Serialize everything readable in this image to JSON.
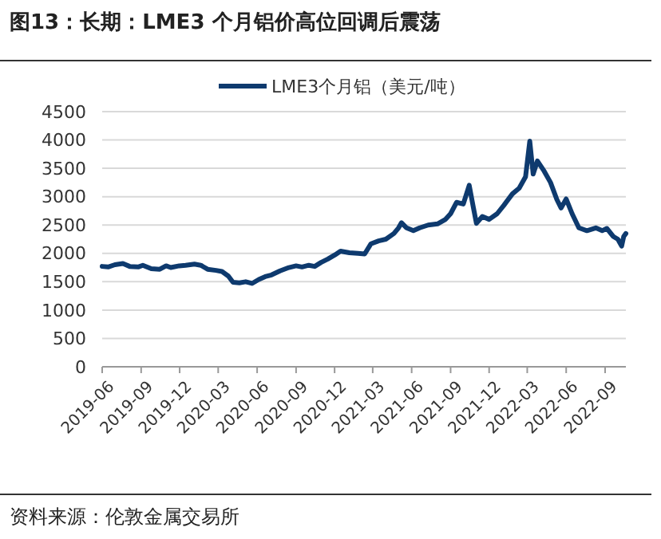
{
  "chart_data": {
    "type": "line",
    "title": "图13：长期：LME3 个月铝价高位回调后震荡",
    "annotations": [
      "资料来源：伦敦金属交易所"
    ],
    "x": [
      "2019-06-01",
      "2019-06-15",
      "2019-07-01",
      "2019-07-20",
      "2019-08-05",
      "2019-08-25",
      "2019-09-05",
      "2019-09-25",
      "2019-10-15",
      "2019-10-30",
      "2019-11-10",
      "2019-11-30",
      "2019-12-15",
      "2020-01-05",
      "2020-01-20",
      "2020-02-05",
      "2020-02-25",
      "2020-03-10",
      "2020-03-25",
      "2020-04-05",
      "2020-04-20",
      "2020-05-05",
      "2020-05-20",
      "2020-06-05",
      "2020-06-20",
      "2020-07-05",
      "2020-07-25",
      "2020-08-15",
      "2020-09-01",
      "2020-09-15",
      "2020-10-01",
      "2020-10-15",
      "2020-10-30",
      "2020-11-15",
      "2020-12-01",
      "2020-12-15",
      "2021-01-05",
      "2021-01-25",
      "2021-02-10",
      "2021-02-25",
      "2021-03-15",
      "2021-04-01",
      "2021-04-20",
      "2021-05-01",
      "2021-05-08",
      "2021-05-20",
      "2021-06-05",
      "2021-06-20",
      "2021-07-10",
      "2021-08-01",
      "2021-08-20",
      "2021-09-01",
      "2021-09-15",
      "2021-10-01",
      "2021-10-15",
      "2021-10-25",
      "2021-11-01",
      "2021-11-15",
      "2021-12-01",
      "2021-12-20",
      "2022-01-05",
      "2022-01-25",
      "2022-02-10",
      "2022-02-25",
      "2022-03-07",
      "2022-03-15",
      "2022-03-25",
      "2022-04-10",
      "2022-04-25",
      "2022-05-10",
      "2022-05-20",
      "2022-06-01",
      "2022-06-15",
      "2022-07-01",
      "2022-07-20",
      "2022-08-10",
      "2022-08-25",
      "2022-09-05",
      "2022-09-20",
      "2022-10-01",
      "2022-10-10",
      "2022-10-15",
      "2022-10-20"
    ],
    "series": [
      {
        "name": "LME3个月铝（美元/吨）",
        "color": "#0e3a6e",
        "values": [
          1770,
          1760,
          1800,
          1820,
          1770,
          1760,
          1790,
          1730,
          1720,
          1780,
          1750,
          1780,
          1790,
          1810,
          1790,
          1720,
          1700,
          1680,
          1600,
          1490,
          1480,
          1500,
          1470,
          1540,
          1590,
          1620,
          1690,
          1750,
          1780,
          1760,
          1790,
          1770,
          1840,
          1900,
          1970,
          2040,
          2010,
          2000,
          1990,
          2170,
          2220,
          2250,
          2350,
          2450,
          2540,
          2450,
          2400,
          2450,
          2500,
          2520,
          2600,
          2700,
          2900,
          2870,
          3200,
          2800,
          2530,
          2650,
          2600,
          2700,
          2850,
          3050,
          3150,
          3350,
          3980,
          3400,
          3630,
          3450,
          3250,
          2950,
          2800,
          2960,
          2700,
          2450,
          2400,
          2450,
          2400,
          2440,
          2300,
          2250,
          2130,
          2300,
          2350
        ]
      }
    ],
    "xlim": [
      "2019-06-01",
      "2022-10-20"
    ],
    "xticks": [
      {
        "value": "2019-06-01",
        "label": "2019-06"
      },
      {
        "value": "2019-09-01",
        "label": "2019-09"
      },
      {
        "value": "2019-12-01",
        "label": "2019-12"
      },
      {
        "value": "2020-03-01",
        "label": "2020-03"
      },
      {
        "value": "2020-06-01",
        "label": "2020-06"
      },
      {
        "value": "2020-09-01",
        "label": "2020-09"
      },
      {
        "value": "2020-12-01",
        "label": "2020-12"
      },
      {
        "value": "2021-03-01",
        "label": "2021-03"
      },
      {
        "value": "2021-06-01",
        "label": "2021-06"
      },
      {
        "value": "2021-09-01",
        "label": "2021-09"
      },
      {
        "value": "2021-12-01",
        "label": "2021-12"
      },
      {
        "value": "2022-03-01",
        "label": "2022-03"
      },
      {
        "value": "2022-06-01",
        "label": "2022-06"
      },
      {
        "value": "2022-09-01",
        "label": "2022-09"
      }
    ],
    "ylim": [
      0,
      4500
    ],
    "yticks": [
      0,
      500,
      1000,
      1500,
      2000,
      2500,
      3000,
      3500,
      4000,
      4500
    ],
    "grid": "y",
    "legend": "top",
    "line_style": "solid",
    "marker": "none"
  }
}
